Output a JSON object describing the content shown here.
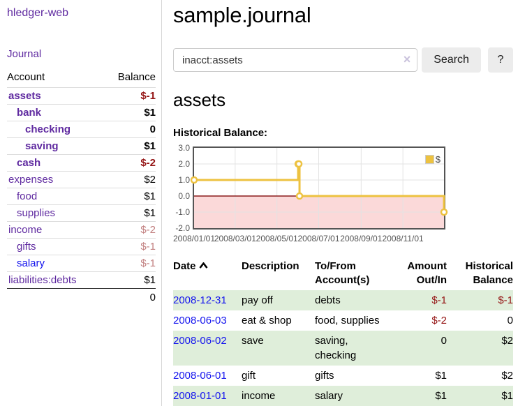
{
  "brand": "hledger-web",
  "sidebar": {
    "journal_link": "Journal",
    "accounts_header": {
      "account": "Account",
      "balance": "Balance"
    },
    "accounts": [
      {
        "name": "assets",
        "indent": 0,
        "balance": "$-1",
        "bold": true,
        "negative": "strong"
      },
      {
        "name": "bank",
        "indent": 1,
        "balance": "$1",
        "bold": true,
        "negative": "none"
      },
      {
        "name": "checking",
        "indent": 2,
        "balance": "0",
        "bold": true,
        "negative": "none"
      },
      {
        "name": "saving",
        "indent": 2,
        "balance": "$1",
        "bold": true,
        "negative": "none"
      },
      {
        "name": "cash",
        "indent": 1,
        "balance": "$-2",
        "bold": true,
        "negative": "strong"
      },
      {
        "name": "expenses",
        "indent": 0,
        "balance": "$2",
        "bold": false,
        "negative": "none"
      },
      {
        "name": "food",
        "indent": 1,
        "balance": "$1",
        "bold": false,
        "negative": "none"
      },
      {
        "name": "supplies",
        "indent": 1,
        "balance": "$1",
        "bold": false,
        "negative": "none"
      },
      {
        "name": "income",
        "indent": 0,
        "balance": "$-2",
        "bold": false,
        "negative": "soft"
      },
      {
        "name": "gifts",
        "indent": 1,
        "balance": "$-1",
        "bold": false,
        "negative": "soft"
      },
      {
        "name": "salary",
        "indent": 1,
        "balance": "$-1",
        "bold": false,
        "negative": "soft"
      },
      {
        "name": "liabilities:debts",
        "indent": 0,
        "balance": "$1",
        "bold": false,
        "negative": "none"
      }
    ],
    "total": "0"
  },
  "main": {
    "title": "sample.journal",
    "search": {
      "value": "inacct:assets",
      "button": "Search",
      "help_button": "?"
    },
    "account_title": "assets",
    "section_label": "Historical Balance:",
    "transactions": {
      "columns": [
        {
          "label": "Date",
          "sorted": "ascending"
        },
        {
          "label": "Description"
        },
        {
          "label": "To/From Account(s)"
        },
        {
          "label": "Amount Out/In"
        },
        {
          "label": "Historical Balance"
        }
      ],
      "rows": [
        {
          "date": "2008-12-31",
          "description": "pay off",
          "accounts": "debts",
          "amount": "$-1",
          "balance": "$-1"
        },
        {
          "date": "2008-06-03",
          "description": "eat & shop",
          "accounts": "food, supplies",
          "amount": "$-2",
          "balance": "0"
        },
        {
          "date": "2008-06-02",
          "description": "save",
          "accounts": "saving, checking",
          "amount": "0",
          "balance": "$2"
        },
        {
          "date": "2008-06-01",
          "description": "gift",
          "accounts": "gifts",
          "amount": "$1",
          "balance": "$2"
        },
        {
          "date": "2008-01-01",
          "description": "income",
          "accounts": "salary",
          "amount": "$1",
          "balance": "$1"
        }
      ]
    }
  },
  "icons": {
    "clear": "×"
  },
  "chart_data": {
    "type": "line",
    "line_style": "step",
    "title": "Historical Balance",
    "series": [
      {
        "name": "$",
        "color": "#edc240",
        "points": [
          [
            "2008-01-01",
            1
          ],
          [
            "2008-06-01",
            2
          ],
          [
            "2008-06-02",
            2
          ],
          [
            "2008-06-03",
            0
          ],
          [
            "2008-12-31",
            -1
          ]
        ]
      }
    ],
    "x_range": [
      "2008-01-01",
      "2008-12-31"
    ],
    "ylim": [
      -2,
      3
    ],
    "y_ticks": [
      "3.0",
      "2.0",
      "1.0",
      "0.0",
      "-1.0",
      "-2.0"
    ],
    "x_ticks": [
      "2008/01/01",
      "2008/03/01",
      "2008/05/01",
      "2008/07/01",
      "2008/09/01",
      "2008/11/01"
    ],
    "grid": true,
    "legend": [
      "$"
    ],
    "legend_position": "top-right",
    "negative_region_color": "#fbd9d9",
    "zero_line_color": "#8b1c1c",
    "border_color": "#545454",
    "gridline_color": "#e3e3e3"
  },
  "colors": {
    "link_purple": "#5f2aa0",
    "link_blue": "#1414ee",
    "negative_strong": "#941414",
    "negative_soft": "#c28080",
    "row_shading_green": "#dfeeda",
    "series_gold": "#edc240"
  }
}
